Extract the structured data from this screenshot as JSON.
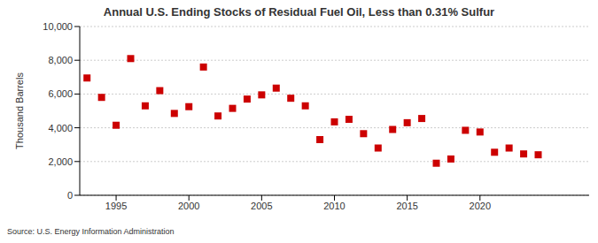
{
  "chart_data": {
    "type": "scatter",
    "title": "Annual U.S. Ending Stocks of Residual Fuel Oil, Less than 0.31% Sulfur",
    "y_label": "Thousand Barrels",
    "source": "Source: U.S. Energy Information Administration",
    "x": [
      1993,
      1994,
      1995,
      1996,
      1997,
      1998,
      1999,
      2000,
      2001,
      2002,
      2003,
      2004,
      2005,
      2006,
      2007,
      2008,
      2009,
      2010,
      2011,
      2012,
      2013,
      2014,
      2015,
      2016,
      2017,
      2018,
      2019,
      2020,
      2021,
      2022,
      2023,
      2024
    ],
    "values": [
      6950,
      5800,
      4150,
      8100,
      5300,
      6200,
      4850,
      5250,
      7600,
      4700,
      5150,
      5700,
      5950,
      6350,
      5750,
      5300,
      3300,
      4350,
      4500,
      3650,
      2800,
      3900,
      4300,
      4550,
      1900,
      2150,
      3850,
      3750,
      2550,
      2800,
      2450,
      2400
    ],
    "color": "#cc0000",
    "marker": "square",
    "xlim": [
      1992.5,
      2027.5
    ],
    "xticks": [
      1995,
      2000,
      2005,
      2010,
      2015,
      2020
    ],
    "ylim": [
      0,
      10000
    ],
    "yticks": [
      0,
      {
        "value": 2000,
        "label": "2,000"
      },
      {
        "value": 4000,
        "label": "4,000"
      },
      {
        "value": 6000,
        "label": "6,000"
      },
      {
        "value": 8000,
        "label": "8,000"
      },
      {
        "value": 10000,
        "label": "10,000"
      }
    ],
    "grid": "y"
  }
}
